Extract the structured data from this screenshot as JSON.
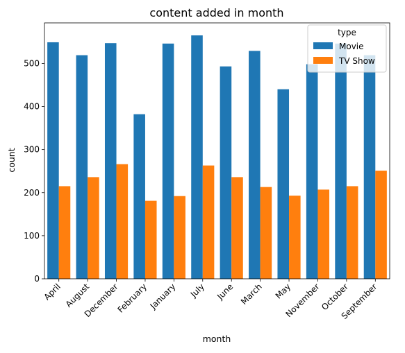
{
  "chart_data": {
    "type": "bar",
    "title": "content added in month",
    "xlabel": "month",
    "ylabel": "count",
    "categories": [
      "April",
      "August",
      "December",
      "February",
      "January",
      "July",
      "June",
      "March",
      "May",
      "November",
      "October",
      "September"
    ],
    "series": [
      {
        "name": "Movie",
        "color": "#1f77b4",
        "values": [
          549,
          519,
          547,
          382,
          546,
          565,
          493,
          529,
          440,
          498,
          546,
          519
        ]
      },
      {
        "name": "TV Show",
        "color": "#ff7f0e",
        "values": [
          215,
          236,
          266,
          181,
          192,
          263,
          236,
          213,
          193,
          207,
          215,
          251
        ]
      }
    ],
    "ylim": [
      0,
      594
    ],
    "yticks": [
      0,
      100,
      200,
      300,
      400,
      500
    ],
    "grid": false,
    "legend": {
      "title": "type",
      "position": "top-right"
    }
  }
}
